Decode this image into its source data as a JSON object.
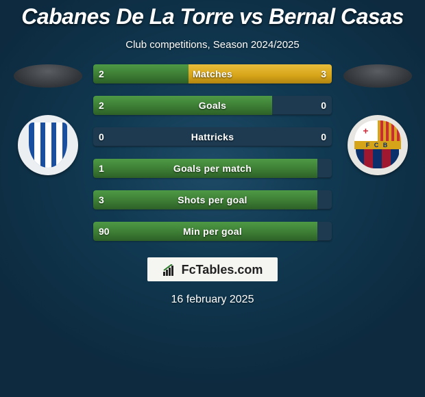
{
  "title": "Cabanes De La Torre vs Bernal Casas",
  "subtitle": "Club competitions, Season 2024/2025",
  "date": "16 february 2025",
  "logo_text": "FcTables.com",
  "colors": {
    "bg_dark": "#0d2a3f",
    "bg_light": "#1f4b68",
    "bar_track": "#1d3a50",
    "bar_left": "#3b7a33",
    "bar_right": "#d6a418",
    "oval_left": "#303438",
    "oval_right": "#303438",
    "logo_box_bg": "#f5f5f2",
    "logo_box_text": "#222",
    "crest1_bg": "#1a4fa0",
    "crest2_top_left": "#cc2a3a",
    "crest2_top_right": "#d6a418",
    "crest2_mid": "#d6a418",
    "crest2_text": "#0a2f6b",
    "crest2_bot1": "#0a2f6b",
    "crest2_bot2": "#a01830"
  },
  "bars": [
    {
      "label": "Matches",
      "left_val": "2",
      "right_val": "3",
      "left_pct": 40,
      "right_pct": 60
    },
    {
      "label": "Goals",
      "left_val": "2",
      "right_val": "0",
      "left_pct": 75,
      "right_pct": 0
    },
    {
      "label": "Hattricks",
      "left_val": "0",
      "right_val": "0",
      "left_pct": 0,
      "right_pct": 0
    },
    {
      "label": "Goals per match",
      "left_val": "1",
      "right_val": "",
      "left_pct": 94,
      "right_pct": 0
    },
    {
      "label": "Shots per goal",
      "left_val": "3",
      "right_val": "",
      "left_pct": 94,
      "right_pct": 0
    },
    {
      "label": "Min per goal",
      "left_val": "90",
      "right_val": "",
      "left_pct": 94,
      "right_pct": 0
    }
  ]
}
